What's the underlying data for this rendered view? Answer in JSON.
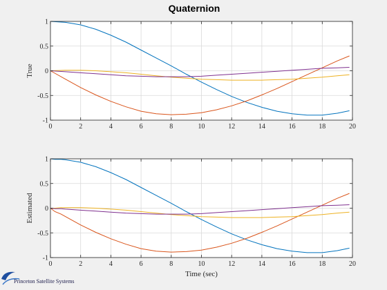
{
  "figure_title": "Quaternion",
  "logo_text": "Princeton Satellite Systems",
  "colors": {
    "background": "#f0f0f0",
    "axes_face": "#ffffff",
    "grid": "#d9d9d9",
    "series": [
      "#0072BD",
      "#D95319",
      "#EDB120",
      "#7E2F8E"
    ]
  },
  "chart_data": [
    {
      "type": "line",
      "title": "",
      "xlabel": "",
      "ylabel": "True",
      "xlim": [
        0,
        20
      ],
      "ylim": [
        -1,
        1
      ],
      "grid": true,
      "xticks": [
        "0",
        "2",
        "4",
        "6",
        "8",
        "10",
        "12",
        "14",
        "16",
        "18",
        "20"
      ],
      "yticks": [
        "-1",
        "-0.5",
        "0",
        "0.5",
        "1"
      ],
      "x": [
        0,
        1,
        2,
        3,
        4,
        5,
        6,
        7,
        8,
        9,
        10,
        11,
        12,
        13,
        14,
        15,
        16,
        17,
        18,
        19,
        19.8
      ],
      "series": [
        {
          "values": [
            1.0,
            0.98,
            0.93,
            0.84,
            0.72,
            0.58,
            0.42,
            0.26,
            0.1,
            -0.07,
            -0.23,
            -0.38,
            -0.52,
            -0.64,
            -0.74,
            -0.82,
            -0.87,
            -0.9,
            -0.9,
            -0.86,
            -0.81
          ]
        },
        {
          "values": [
            0.0,
            -0.17,
            -0.34,
            -0.49,
            -0.62,
            -0.73,
            -0.82,
            -0.87,
            -0.89,
            -0.88,
            -0.85,
            -0.79,
            -0.71,
            -0.61,
            -0.49,
            -0.36,
            -0.22,
            -0.08,
            0.06,
            0.2,
            0.3
          ]
        },
        {
          "values": [
            0.0,
            0.01,
            0.01,
            0.0,
            -0.02,
            -0.04,
            -0.07,
            -0.1,
            -0.13,
            -0.15,
            -0.17,
            -0.18,
            -0.19,
            -0.19,
            -0.19,
            -0.18,
            -0.17,
            -0.15,
            -0.13,
            -0.1,
            -0.08
          ]
        },
        {
          "values": [
            0.0,
            -0.02,
            -0.04,
            -0.06,
            -0.08,
            -0.1,
            -0.11,
            -0.12,
            -0.12,
            -0.12,
            -0.11,
            -0.09,
            -0.07,
            -0.05,
            -0.03,
            -0.01,
            0.01,
            0.03,
            0.05,
            0.06,
            0.07
          ]
        }
      ]
    },
    {
      "type": "line",
      "title": "",
      "xlabel": "Time (sec)",
      "ylabel": "Estimated",
      "xlim": [
        0,
        20
      ],
      "ylim": [
        -1,
        1
      ],
      "grid": true,
      "xticks": [
        "0",
        "2",
        "4",
        "6",
        "8",
        "10",
        "12",
        "14",
        "16",
        "18",
        "20"
      ],
      "yticks": [
        "-1",
        "-0.5",
        "0",
        "0.5",
        "1"
      ],
      "x": [
        0,
        0.3,
        0.7,
        1,
        2,
        3,
        4,
        5,
        6,
        7,
        8,
        9,
        10,
        11,
        12,
        13,
        14,
        15,
        16,
        17,
        18,
        19,
        19.8
      ],
      "series": [
        {
          "values": [
            1.0,
            0.99,
            0.99,
            0.98,
            0.93,
            0.84,
            0.72,
            0.58,
            0.42,
            0.26,
            0.1,
            -0.07,
            -0.23,
            -0.38,
            -0.52,
            -0.64,
            -0.74,
            -0.82,
            -0.87,
            -0.9,
            -0.9,
            -0.86,
            -0.81
          ]
        },
        {
          "values": [
            0.0,
            -0.07,
            -0.12,
            -0.17,
            -0.34,
            -0.49,
            -0.62,
            -0.73,
            -0.82,
            -0.87,
            -0.89,
            -0.88,
            -0.85,
            -0.79,
            -0.71,
            -0.61,
            -0.49,
            -0.36,
            -0.22,
            -0.08,
            0.06,
            0.2,
            0.3
          ]
        },
        {
          "values": [
            0.0,
            0.0,
            0.01,
            0.01,
            0.01,
            0.0,
            -0.02,
            -0.04,
            -0.07,
            -0.1,
            -0.13,
            -0.15,
            -0.17,
            -0.18,
            -0.19,
            -0.19,
            -0.19,
            -0.18,
            -0.17,
            -0.15,
            -0.13,
            -0.1,
            -0.08
          ]
        },
        {
          "values": [
            0.0,
            -0.01,
            -0.01,
            -0.02,
            -0.04,
            -0.06,
            -0.08,
            -0.1,
            -0.11,
            -0.12,
            -0.12,
            -0.12,
            -0.11,
            -0.09,
            -0.07,
            -0.05,
            -0.03,
            -0.01,
            0.01,
            0.03,
            0.05,
            0.06,
            0.07
          ]
        }
      ]
    }
  ]
}
